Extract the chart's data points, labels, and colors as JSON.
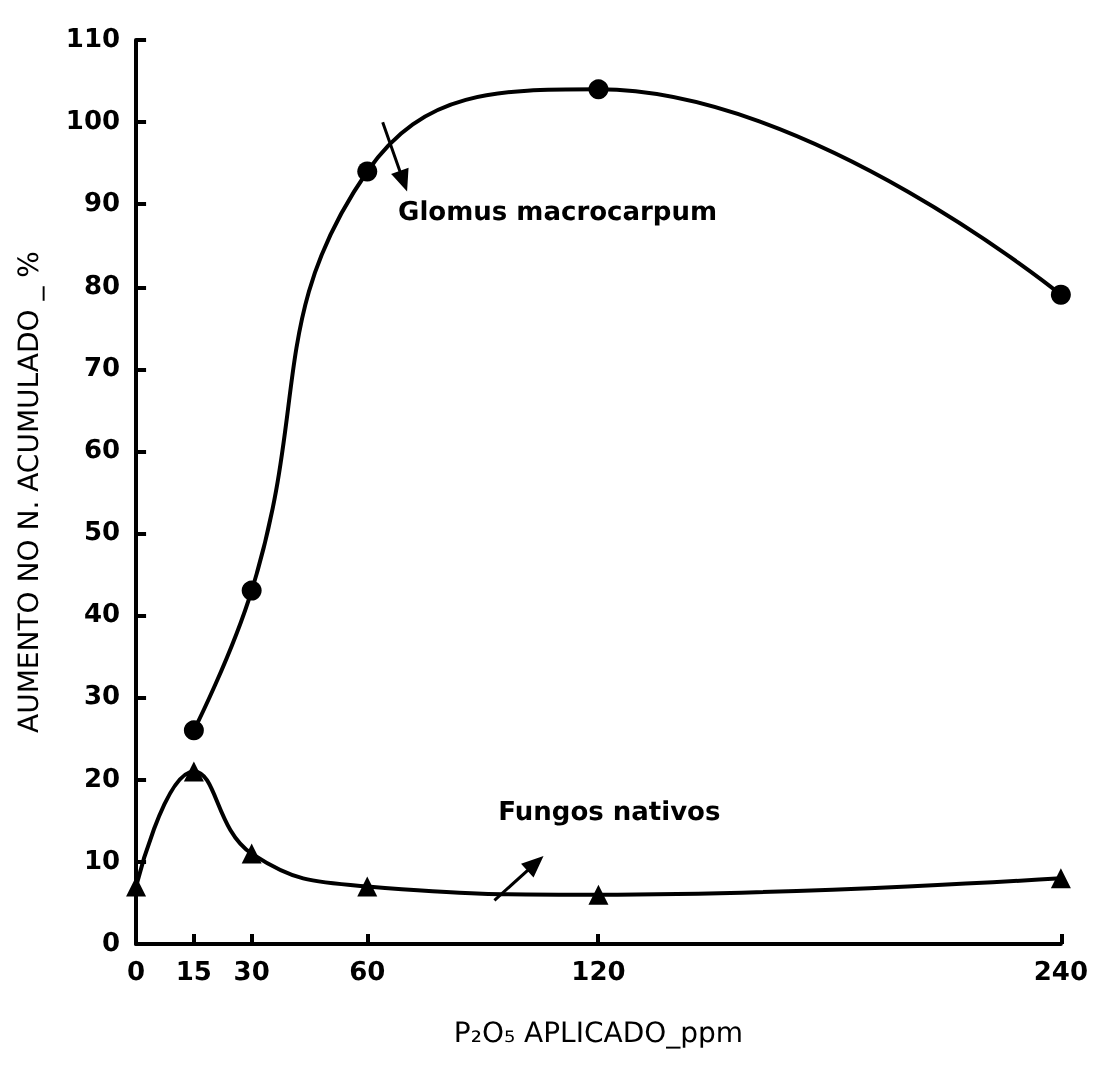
{
  "chart_data": {
    "type": "line",
    "xlabel": "P₂O₅ APLICADO_ppm",
    "ylabel": "AUMENTO NO N. ACUMULADO _ %",
    "x": [
      0,
      15,
      30,
      60,
      120,
      240
    ],
    "xlim": [
      0,
      240
    ],
    "xticks": [
      0,
      15,
      30,
      60,
      120,
      240
    ],
    "ylim": [
      0,
      110
    ],
    "yticks": [
      0,
      10,
      20,
      30,
      40,
      50,
      60,
      70,
      80,
      90,
      100,
      110
    ],
    "grid": false,
    "series": [
      {
        "name": "Glomus macrocarpum",
        "color": "#000000",
        "marker": "circle",
        "x": [
          15,
          30,
          60,
          120,
          240
        ],
        "values": [
          26,
          43,
          94,
          104,
          79
        ]
      },
      {
        "name": "Fungos nativos",
        "color": "#000000",
        "marker": "triangle",
        "values": [
          7,
          21,
          11,
          7,
          6,
          8
        ]
      }
    ]
  }
}
